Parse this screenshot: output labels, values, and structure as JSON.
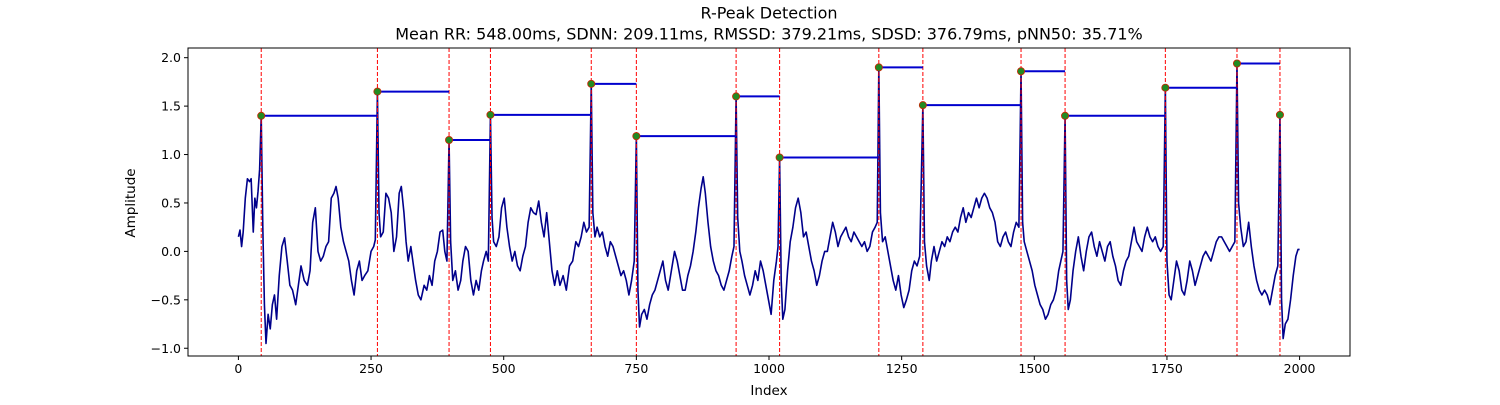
{
  "chart_data": {
    "type": "line",
    "title": "R-Peak Detection",
    "subtitle": "Mean RR: 548.00ms, SDNN: 209.11ms, RMSSD: 379.21ms, SDSD: 376.79ms, pNN50: 35.71%",
    "xlabel": "Index",
    "ylabel": "Amplitude",
    "xlim": [
      -95,
      2095
    ],
    "ylim": [
      -1.08,
      2.1
    ],
    "xticks": [
      0,
      250,
      500,
      750,
      1000,
      1250,
      1500,
      1750,
      2000
    ],
    "xtick_labels": [
      "0",
      "250",
      "500",
      "750",
      "1000",
      "1250",
      "1500",
      "1750",
      "2000"
    ],
    "yticks": [
      -1.0,
      -0.5,
      0.0,
      0.5,
      1.0,
      1.5,
      2.0
    ],
    "ytick_labels": [
      "−1.0",
      "−0.5",
      "0.0",
      "0.5",
      "1.0",
      "1.5",
      "2.0"
    ],
    "grid": false,
    "colors": {
      "signal": "#00008b",
      "peak_line": "#ff0000",
      "rr_segment": "#0000cd",
      "peak_marker_fill": "#228b22",
      "peak_marker_edge": "#cc2200"
    },
    "peaks": {
      "x": [
        43,
        262,
        397,
        475,
        665,
        750,
        938,
        1020,
        1207,
        1290,
        1475,
        1558,
        1747,
        1882,
        1963
      ],
      "y": [
        1.4,
        1.65,
        1.15,
        1.41,
        1.73,
        1.19,
        1.6,
        0.97,
        1.9,
        1.51,
        1.86,
        1.4,
        1.69,
        1.94,
        1.41
      ]
    },
    "signal_keypoints": [
      [
        0,
        0.15
      ],
      [
        3,
        0.22
      ],
      [
        6,
        0.05
      ],
      [
        9,
        0.2
      ],
      [
        13,
        0.55
      ],
      [
        17,
        0.75
      ],
      [
        21,
        0.72
      ],
      [
        24,
        0.75
      ],
      [
        28,
        0.2
      ],
      [
        31,
        0.55
      ],
      [
        34,
        0.45
      ],
      [
        37,
        0.62
      ],
      [
        40,
        0.85
      ],
      [
        43,
        1.4
      ],
      [
        46,
        0.25
      ],
      [
        49,
        -0.55
      ],
      [
        52,
        -0.95
      ],
      [
        56,
        -0.65
      ],
      [
        60,
        -0.8
      ],
      [
        64,
        -0.55
      ],
      [
        68,
        -0.45
      ],
      [
        72,
        -0.7
      ],
      [
        77,
        -0.25
      ],
      [
        82,
        0.05
      ],
      [
        87,
        0.14
      ],
      [
        92,
        -0.1
      ],
      [
        97,
        -0.35
      ],
      [
        102,
        -0.4
      ],
      [
        108,
        -0.55
      ],
      [
        113,
        -0.35
      ],
      [
        118,
        -0.15
      ],
      [
        124,
        -0.3
      ],
      [
        130,
        -0.35
      ],
      [
        135,
        -0.2
      ],
      [
        140,
        0.3
      ],
      [
        145,
        0.45
      ],
      [
        150,
        0.0
      ],
      [
        155,
        -0.1
      ],
      [
        160,
        -0.05
      ],
      [
        165,
        0.05
      ],
      [
        170,
        0.1
      ],
      [
        175,
        0.55
      ],
      [
        180,
        0.6
      ],
      [
        184,
        0.67
      ],
      [
        188,
        0.55
      ],
      [
        193,
        0.25
      ],
      [
        198,
        0.1
      ],
      [
        203,
        0.0
      ],
      [
        208,
        -0.1
      ],
      [
        213,
        -0.3
      ],
      [
        218,
        -0.45
      ],
      [
        223,
        -0.2
      ],
      [
        228,
        -0.1
      ],
      [
        233,
        -0.3
      ],
      [
        238,
        -0.25
      ],
      [
        244,
        -0.2
      ],
      [
        250,
        0.0
      ],
      [
        255,
        0.05
      ],
      [
        258,
        0.12
      ],
      [
        262,
        1.65
      ],
      [
        265,
        0.4
      ],
      [
        268,
        0.15
      ],
      [
        273,
        0.2
      ],
      [
        278,
        0.6
      ],
      [
        283,
        0.55
      ],
      [
        288,
        0.4
      ],
      [
        293,
        0.0
      ],
      [
        298,
        0.15
      ],
      [
        303,
        0.6
      ],
      [
        307,
        0.67
      ],
      [
        312,
        0.4
      ],
      [
        316,
        0.1
      ],
      [
        320,
        -0.1
      ],
      [
        325,
        0.05
      ],
      [
        330,
        -0.15
      ],
      [
        334,
        -0.3
      ],
      [
        339,
        -0.45
      ],
      [
        344,
        -0.5
      ],
      [
        350,
        -0.35
      ],
      [
        355,
        -0.4
      ],
      [
        360,
        -0.25
      ],
      [
        365,
        -0.35
      ],
      [
        370,
        -0.1
      ],
      [
        375,
        0.0
      ],
      [
        380,
        0.2
      ],
      [
        385,
        0.22
      ],
      [
        389,
        0.0
      ],
      [
        393,
        -0.1
      ],
      [
        397,
        1.15
      ],
      [
        400,
        0.1
      ],
      [
        404,
        -0.3
      ],
      [
        409,
        -0.2
      ],
      [
        414,
        -0.4
      ],
      [
        419,
        -0.3
      ],
      [
        423,
        -0.1
      ],
      [
        428,
        0.05
      ],
      [
        433,
        0.0
      ],
      [
        438,
        -0.3
      ],
      [
        443,
        -0.45
      ],
      [
        448,
        -0.3
      ],
      [
        453,
        -0.4
      ],
      [
        458,
        -0.2
      ],
      [
        462,
        -0.1
      ],
      [
        467,
        0.0
      ],
      [
        471,
        -0.1
      ],
      [
        475,
        1.41
      ],
      [
        478,
        0.35
      ],
      [
        481,
        0.1
      ],
      [
        486,
        0.05
      ],
      [
        491,
        0.15
      ],
      [
        496,
        0.45
      ],
      [
        501,
        0.55
      ],
      [
        506,
        0.25
      ],
      [
        511,
        0.05
      ],
      [
        516,
        -0.1
      ],
      [
        521,
        0.0
      ],
      [
        526,
        -0.15
      ],
      [
        531,
        -0.2
      ],
      [
        536,
        -0.05
      ],
      [
        541,
        0.05
      ],
      [
        546,
        0.3
      ],
      [
        551,
        0.45
      ],
      [
        556,
        0.4
      ],
      [
        561,
        0.38
      ],
      [
        566,
        0.52
      ],
      [
        571,
        0.3
      ],
      [
        576,
        0.15
      ],
      [
        581,
        0.4
      ],
      [
        586,
        0.1
      ],
      [
        591,
        -0.2
      ],
      [
        596,
        -0.35
      ],
      [
        601,
        -0.2
      ],
      [
        606,
        -0.35
      ],
      [
        612,
        -0.25
      ],
      [
        618,
        -0.4
      ],
      [
        624,
        -0.15
      ],
      [
        630,
        -0.1
      ],
      [
        636,
        0.1
      ],
      [
        641,
        0.05
      ],
      [
        646,
        0.15
      ],
      [
        651,
        0.3
      ],
      [
        656,
        0.2
      ],
      [
        661,
        0.25
      ],
      [
        665,
        1.73
      ],
      [
        668,
        0.4
      ],
      [
        672,
        0.15
      ],
      [
        676,
        0.25
      ],
      [
        681,
        0.15
      ],
      [
        686,
        0.2
      ],
      [
        691,
        0.05
      ],
      [
        696,
        -0.05
      ],
      [
        701,
        0.1
      ],
      [
        706,
        0.05
      ],
      [
        711,
        -0.05
      ],
      [
        716,
        -0.15
      ],
      [
        721,
        -0.25
      ],
      [
        726,
        -0.2
      ],
      [
        731,
        -0.3
      ],
      [
        736,
        -0.45
      ],
      [
        741,
        -0.3
      ],
      [
        746,
        -0.1
      ],
      [
        750,
        1.19
      ],
      [
        753,
        -0.4
      ],
      [
        756,
        -0.78
      ],
      [
        760,
        -0.65
      ],
      [
        765,
        -0.6
      ],
      [
        770,
        -0.7
      ],
      [
        775,
        -0.55
      ],
      [
        780,
        -0.45
      ],
      [
        785,
        -0.4
      ],
      [
        790,
        -0.3
      ],
      [
        795,
        -0.2
      ],
      [
        800,
        -0.1
      ],
      [
        805,
        -0.3
      ],
      [
        810,
        -0.4
      ],
      [
        816,
        -0.2
      ],
      [
        822,
        0.0
      ],
      [
        827,
        -0.1
      ],
      [
        832,
        -0.25
      ],
      [
        837,
        -0.4
      ],
      [
        842,
        -0.4
      ],
      [
        847,
        -0.25
      ],
      [
        852,
        -0.15
      ],
      [
        857,
        0.0
      ],
      [
        862,
        0.2
      ],
      [
        867,
        0.45
      ],
      [
        872,
        0.65
      ],
      [
        876,
        0.77
      ],
      [
        880,
        0.6
      ],
      [
        885,
        0.3
      ],
      [
        890,
        0.05
      ],
      [
        895,
        -0.1
      ],
      [
        900,
        -0.2
      ],
      [
        905,
        -0.25
      ],
      [
        910,
        -0.35
      ],
      [
        915,
        -0.4
      ],
      [
        920,
        -0.3
      ],
      [
        925,
        -0.2
      ],
      [
        930,
        -0.05
      ],
      [
        934,
        0.05
      ],
      [
        938,
        1.6
      ],
      [
        941,
        0.35
      ],
      [
        945,
        0.0
      ],
      [
        949,
        -0.1
      ],
      [
        954,
        -0.25
      ],
      [
        959,
        -0.35
      ],
      [
        964,
        -0.45
      ],
      [
        969,
        -0.35
      ],
      [
        974,
        -0.2
      ],
      [
        979,
        -0.3
      ],
      [
        984,
        -0.1
      ],
      [
        989,
        -0.2
      ],
      [
        994,
        -0.35
      ],
      [
        999,
        -0.5
      ],
      [
        1004,
        -0.65
      ],
      [
        1009,
        -0.3
      ],
      [
        1014,
        -0.1
      ],
      [
        1017,
        0.05
      ],
      [
        1020,
        0.97
      ],
      [
        1023,
        -0.3
      ],
      [
        1026,
        -0.7
      ],
      [
        1030,
        -0.6
      ],
      [
        1035,
        -0.2
      ],
      [
        1040,
        0.1
      ],
      [
        1045,
        0.25
      ],
      [
        1050,
        0.45
      ],
      [
        1055,
        0.55
      ],
      [
        1060,
        0.4
      ],
      [
        1065,
        0.15
      ],
      [
        1070,
        0.2
      ],
      [
        1075,
        0.05
      ],
      [
        1080,
        -0.1
      ],
      [
        1085,
        -0.2
      ],
      [
        1090,
        -0.35
      ],
      [
        1095,
        -0.25
      ],
      [
        1100,
        -0.1
      ],
      [
        1105,
        0.0
      ],
      [
        1110,
        0.0
      ],
      [
        1115,
        0.15
      ],
      [
        1120,
        0.3
      ],
      [
        1125,
        0.2
      ],
      [
        1130,
        0.05
      ],
      [
        1135,
        0.15
      ],
      [
        1140,
        0.2
      ],
      [
        1145,
        0.25
      ],
      [
        1150,
        0.15
      ],
      [
        1155,
        0.1
      ],
      [
        1160,
        0.2
      ],
      [
        1165,
        0.15
      ],
      [
        1170,
        0.1
      ],
      [
        1175,
        0.05
      ],
      [
        1180,
        0.1
      ],
      [
        1185,
        0.0
      ],
      [
        1190,
        0.05
      ],
      [
        1195,
        0.2
      ],
      [
        1200,
        0.25
      ],
      [
        1204,
        0.3
      ],
      [
        1207,
        1.9
      ],
      [
        1210,
        0.4
      ],
      [
        1214,
        0.1
      ],
      [
        1219,
        0.15
      ],
      [
        1224,
        0.0
      ],
      [
        1229,
        -0.15
      ],
      [
        1234,
        -0.3
      ],
      [
        1239,
        -0.4
      ],
      [
        1244,
        -0.25
      ],
      [
        1249,
        -0.45
      ],
      [
        1254,
        -0.58
      ],
      [
        1259,
        -0.5
      ],
      [
        1264,
        -0.4
      ],
      [
        1269,
        -0.2
      ],
      [
        1274,
        -0.1
      ],
      [
        1279,
        -0.15
      ],
      [
        1284,
        -0.05
      ],
      [
        1290,
        1.51
      ],
      [
        1293,
        0.1
      ],
      [
        1297,
        -0.15
      ],
      [
        1302,
        -0.3
      ],
      [
        1306,
        -0.1
      ],
      [
        1311,
        0.05
      ],
      [
        1316,
        -0.1
      ],
      [
        1321,
        0.0
      ],
      [
        1326,
        0.1
      ],
      [
        1331,
        0.05
      ],
      [
        1336,
        0.15
      ],
      [
        1341,
        0.1
      ],
      [
        1346,
        0.2
      ],
      [
        1351,
        0.25
      ],
      [
        1356,
        0.2
      ],
      [
        1361,
        0.35
      ],
      [
        1366,
        0.45
      ],
      [
        1371,
        0.3
      ],
      [
        1376,
        0.4
      ],
      [
        1381,
        0.35
      ],
      [
        1386,
        0.45
      ],
      [
        1391,
        0.55
      ],
      [
        1396,
        0.45
      ],
      [
        1401,
        0.55
      ],
      [
        1406,
        0.6
      ],
      [
        1411,
        0.55
      ],
      [
        1416,
        0.45
      ],
      [
        1421,
        0.4
      ],
      [
        1426,
        0.3
      ],
      [
        1431,
        0.1
      ],
      [
        1436,
        0.05
      ],
      [
        1441,
        0.15
      ],
      [
        1446,
        0.2
      ],
      [
        1451,
        0.1
      ],
      [
        1456,
        0.05
      ],
      [
        1461,
        0.2
      ],
      [
        1466,
        0.3
      ],
      [
        1471,
        0.25
      ],
      [
        1475,
        1.86
      ],
      [
        1478,
        0.3
      ],
      [
        1481,
        0.1
      ],
      [
        1486,
        0.0
      ],
      [
        1491,
        -0.1
      ],
      [
        1496,
        -0.2
      ],
      [
        1501,
        -0.35
      ],
      [
        1506,
        -0.45
      ],
      [
        1511,
        -0.55
      ],
      [
        1516,
        -0.6
      ],
      [
        1521,
        -0.7
      ],
      [
        1526,
        -0.65
      ],
      [
        1531,
        -0.55
      ],
      [
        1536,
        -0.5
      ],
      [
        1541,
        -0.4
      ],
      [
        1546,
        -0.2
      ],
      [
        1550,
        -0.1
      ],
      [
        1554,
        0.0
      ],
      [
        1558,
        1.4
      ],
      [
        1561,
        -0.3
      ],
      [
        1564,
        -0.6
      ],
      [
        1568,
        -0.5
      ],
      [
        1573,
        -0.2
      ],
      [
        1578,
        0.0
      ],
      [
        1583,
        0.15
      ],
      [
        1588,
        -0.05
      ],
      [
        1593,
        -0.2
      ],
      [
        1598,
        0.0
      ],
      [
        1603,
        0.15
      ],
      [
        1608,
        0.2
      ],
      [
        1613,
        0.05
      ],
      [
        1618,
        -0.05
      ],
      [
        1623,
        0.1
      ],
      [
        1628,
        0.0
      ],
      [
        1633,
        -0.1
      ],
      [
        1638,
        0.05
      ],
      [
        1643,
        0.1
      ],
      [
        1648,
        -0.05
      ],
      [
        1653,
        -0.15
      ],
      [
        1658,
        -0.3
      ],
      [
        1663,
        -0.35
      ],
      [
        1668,
        -0.2
      ],
      [
        1673,
        -0.1
      ],
      [
        1678,
        -0.05
      ],
      [
        1683,
        0.1
      ],
      [
        1688,
        0.25
      ],
      [
        1693,
        0.1
      ],
      [
        1698,
        0.05
      ],
      [
        1703,
        0.0
      ],
      [
        1708,
        0.15
      ],
      [
        1713,
        0.25
      ],
      [
        1718,
        0.15
      ],
      [
        1723,
        0.1
      ],
      [
        1728,
        0.15
      ],
      [
        1733,
        0.05
      ],
      [
        1738,
        0.0
      ],
      [
        1743,
        0.05
      ],
      [
        1747,
        1.69
      ],
      [
        1750,
        -0.1
      ],
      [
        1754,
        -0.45
      ],
      [
        1758,
        -0.5
      ],
      [
        1763,
        -0.3
      ],
      [
        1768,
        -0.1
      ],
      [
        1773,
        -0.2
      ],
      [
        1778,
        -0.4
      ],
      [
        1783,
        -0.45
      ],
      [
        1788,
        -0.3
      ],
      [
        1793,
        -0.1
      ],
      [
        1798,
        -0.2
      ],
      [
        1803,
        -0.35
      ],
      [
        1808,
        -0.25
      ],
      [
        1813,
        -0.15
      ],
      [
        1818,
        -0.05
      ],
      [
        1823,
        0.0
      ],
      [
        1828,
        -0.05
      ],
      [
        1833,
        -0.1
      ],
      [
        1838,
        0.0
      ],
      [
        1843,
        0.1
      ],
      [
        1848,
        0.15
      ],
      [
        1853,
        0.15
      ],
      [
        1858,
        0.1
      ],
      [
        1863,
        0.05
      ],
      [
        1868,
        0.0
      ],
      [
        1873,
        0.05
      ],
      [
        1878,
        0.1
      ],
      [
        1882,
        1.94
      ],
      [
        1885,
        0.5
      ],
      [
        1889,
        0.25
      ],
      [
        1894,
        0.05
      ],
      [
        1899,
        0.1
      ],
      [
        1904,
        0.3
      ],
      [
        1909,
        0.05
      ],
      [
        1914,
        -0.15
      ],
      [
        1919,
        -0.3
      ],
      [
        1924,
        -0.4
      ],
      [
        1929,
        -0.45
      ],
      [
        1934,
        -0.4
      ],
      [
        1939,
        -0.45
      ],
      [
        1944,
        -0.55
      ],
      [
        1949,
        -0.4
      ],
      [
        1954,
        -0.25
      ],
      [
        1959,
        -0.15
      ],
      [
        1963,
        1.41
      ],
      [
        1966,
        -0.5
      ],
      [
        1969,
        -0.9
      ],
      [
        1973,
        -0.75
      ],
      [
        1978,
        -0.7
      ],
      [
        1983,
        -0.5
      ],
      [
        1988,
        -0.25
      ],
      [
        1993,
        -0.05
      ],
      [
        1997,
        0.02
      ],
      [
        2000,
        0.02
      ]
    ]
  }
}
